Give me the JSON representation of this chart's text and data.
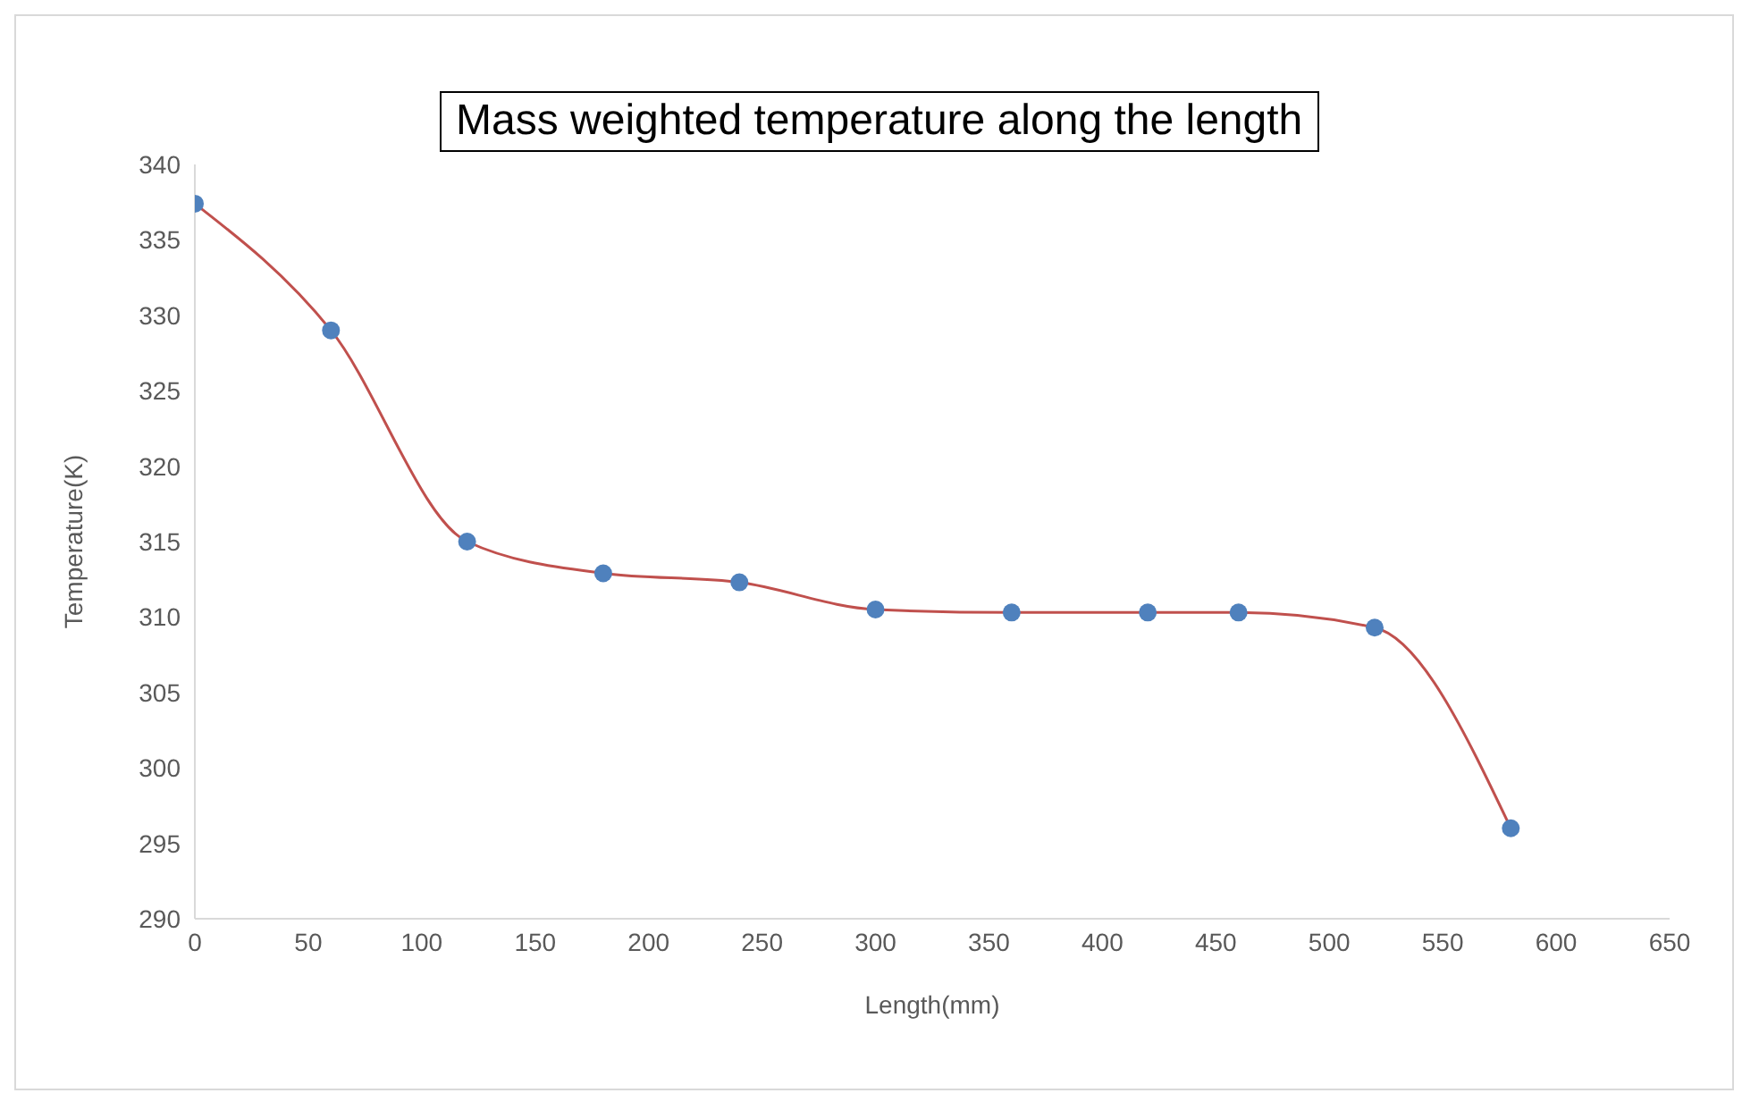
{
  "chart_data": {
    "type": "line",
    "title": "Mass weighted temperature along the length",
    "xlabel": "Length(mm)",
    "ylabel": "Temperature(K)",
    "x": [
      0,
      60,
      120,
      180,
      240,
      300,
      360,
      420,
      460,
      520,
      580
    ],
    "series": [
      {
        "color": "#c0504d",
        "colors": [
          "#4f81bd",
          "#4f81bd",
          "#4f81bd",
          "#4f81bd",
          "#4f81bd",
          "#4f81bd",
          "#4f81bd",
          "#4f81bd",
          "#4f81bd",
          "#4f81bd",
          "#4f81bd"
        ],
        "values": [
          337.4,
          329,
          315,
          312.9,
          312.3,
          310.5,
          310.3,
          310.3,
          310.3,
          309.3,
          296
        ]
      }
    ],
    "xlim": [
      0,
      650
    ],
    "xticks": [
      0,
      50,
      100,
      150,
      200,
      250,
      300,
      350,
      400,
      450,
      500,
      550,
      600,
      650
    ],
    "ylim": [
      290,
      340
    ],
    "yticks": [
      290,
      295,
      300,
      305,
      310,
      315,
      320,
      325,
      330,
      335,
      340
    ],
    "grid": false,
    "marker": "circle",
    "line_style": "solid"
  }
}
